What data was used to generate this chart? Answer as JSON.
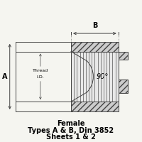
{
  "bg_color": "#f5f5f0",
  "line_color": "#444444",
  "fill_color": "#cccccc",
  "title_lines": [
    "Female",
    "Types A & B, Din 3852",
    "Sheets 1 & 2"
  ],
  "title_fontsize": 7.0,
  "label_A": "A",
  "label_B": "B",
  "label_thread": "Thread",
  "label_id": "I.D.",
  "label_90": "90",
  "font_family": "DejaVu Sans"
}
